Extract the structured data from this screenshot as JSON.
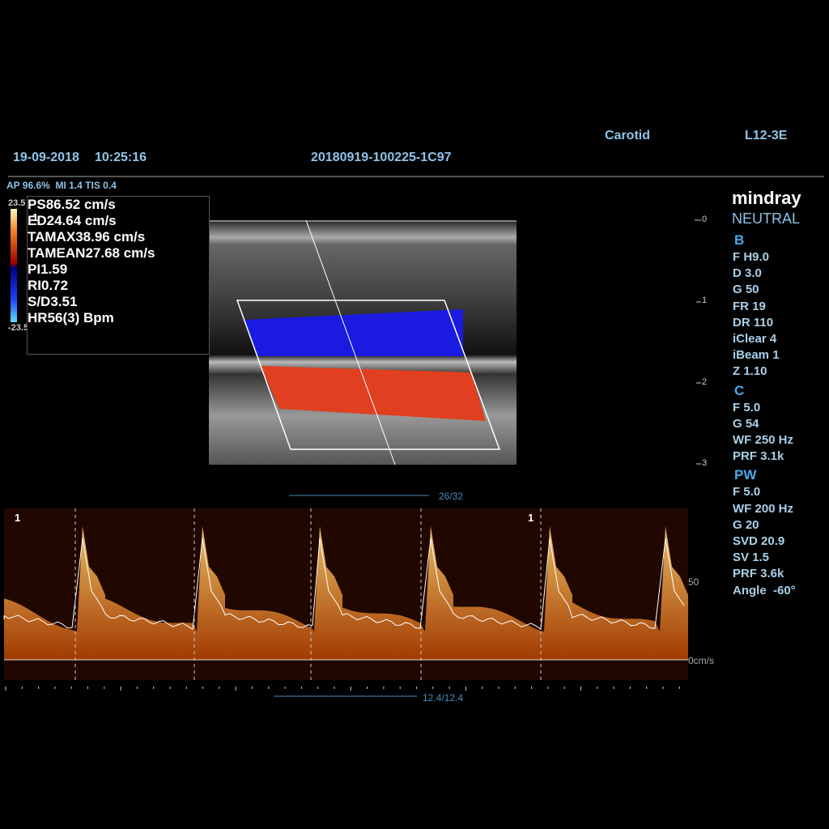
{
  "header": {
    "preset": "Carotid",
    "probe": "L12-3E",
    "date": "19-09-2018",
    "time": "10:25:16",
    "exam_id": "20180919-100225-1C97",
    "acoustic": "AP 96.6%  MI 1.4 TIS 0.4"
  },
  "color_bar": {
    "top": "23.5",
    "bottom": "-23.5"
  },
  "measurements": {
    "marker": "1",
    "rows": [
      [
        "PS",
        "86.52 cm/s"
      ],
      [
        "ED",
        "24.64 cm/s"
      ],
      [
        "TAMAX",
        "38.96 cm/s"
      ],
      [
        "TAMEAN",
        "27.68 cm/s"
      ],
      [
        "PI",
        "1.59"
      ],
      [
        "RI",
        "0.72"
      ],
      [
        "S/D",
        "3.51"
      ],
      [
        "HR",
        "56(3) Bpm"
      ]
    ]
  },
  "depth_scale": [
    "0",
    "1",
    "2",
    "3"
  ],
  "brand": {
    "logo": "mindray",
    "mode": "NEUTRAL"
  },
  "params": [
    {
      "title": "B",
      "items": [
        "F H9.0",
        "D 3.0",
        "G 50",
        "FR 19",
        "DR 110",
        "iClear 4",
        "iBeam 1",
        "Z 1.10"
      ]
    },
    {
      "title": "C",
      "items": [
        "F 5.0",
        "G 54",
        "WF 250 Hz",
        "PRF 3.1k"
      ]
    },
    {
      "title": "PW",
      "items": [
        "F 5.0",
        "WF 200 Hz",
        "G 20",
        "SVD 20.9",
        "SV 1.5",
        "PRF 3.6k",
        "Angle  -60°"
      ]
    }
  ],
  "cine": {
    "frames": "26/32",
    "time": "12.4/12.4"
  },
  "spectrum": {
    "markers": [
      "1",
      "1"
    ],
    "scale_mid": "50",
    "scale_zero": "0cm/s"
  }
}
